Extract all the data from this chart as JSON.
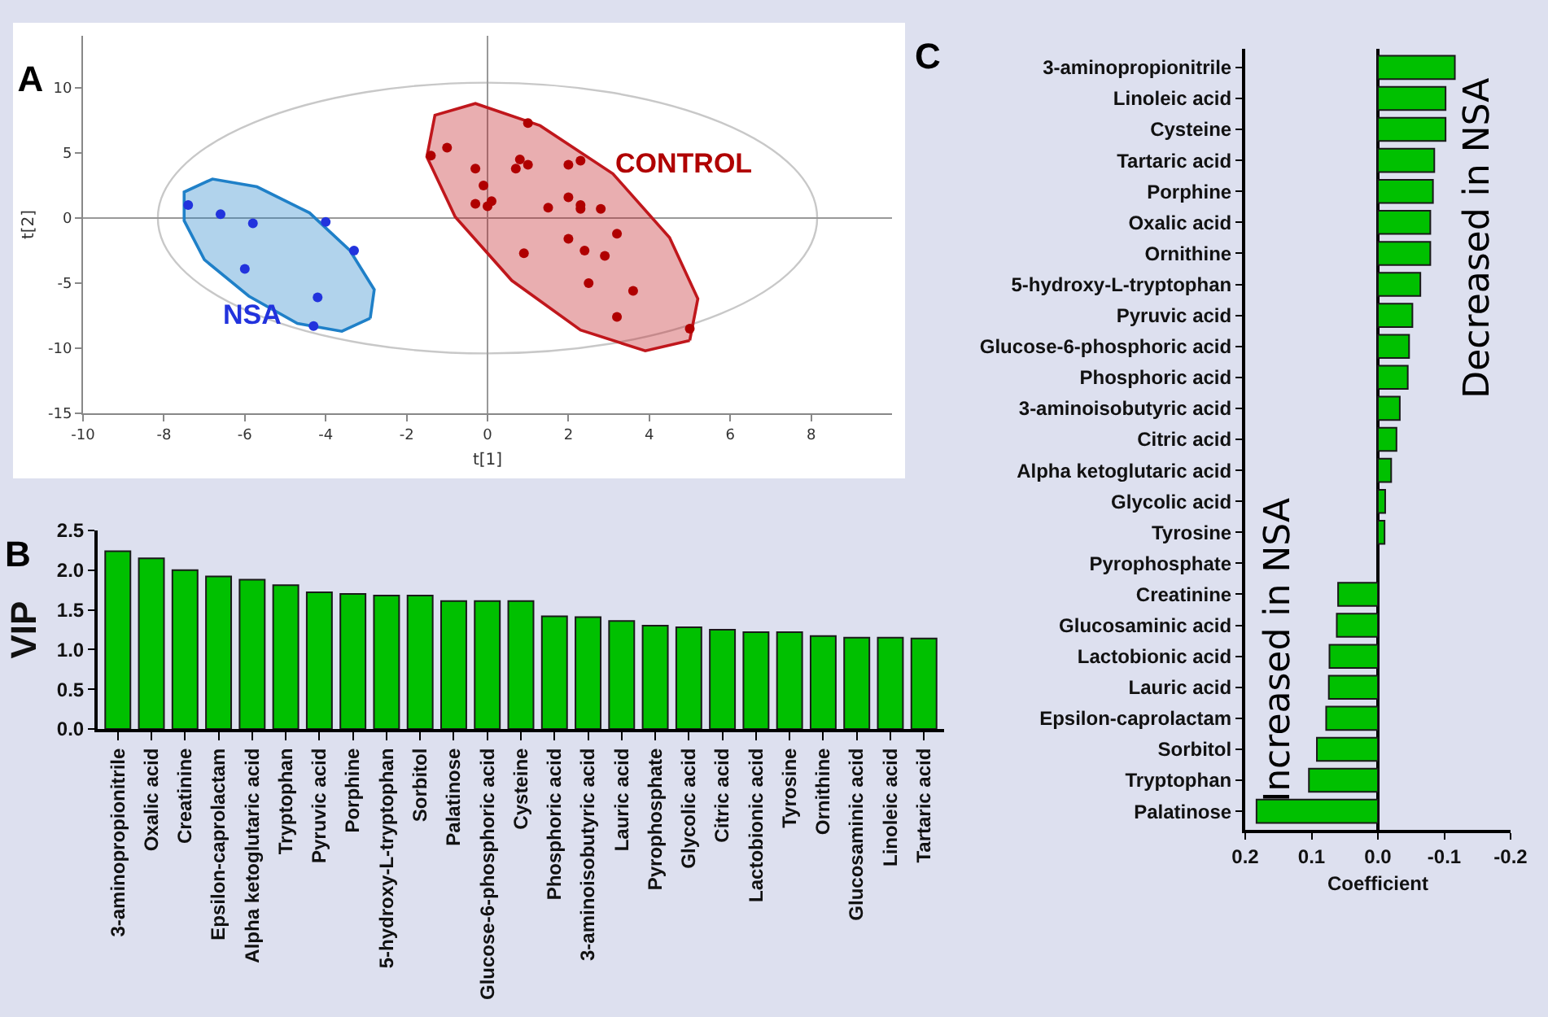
{
  "chart_data": [
    {
      "type": "scatter",
      "title": "A",
      "xlabel": "t[1]",
      "ylabel": "t[2]",
      "xlim": [
        -10,
        10
      ],
      "ylim": [
        -15,
        14
      ],
      "xticks": [
        -10,
        -8,
        -6,
        -4,
        -2,
        0,
        2,
        4,
        6,
        8
      ],
      "yticks": [
        -15,
        -10,
        -5,
        0,
        5,
        10
      ],
      "grid": false,
      "marker": "circle",
      "ref_lines": [
        {
          "axis": "x",
          "value": 0,
          "color": "#999999"
        },
        {
          "axis": "y",
          "value": 0,
          "color": "#999999"
        }
      ],
      "annotations": [
        "NSA",
        "CONTROL"
      ],
      "series": [
        {
          "type": "area",
          "marker": "none",
          "color": "#1f80c8",
          "x": [
            -2.9,
            -2.8,
            -3.4,
            -4.4,
            -5.7,
            -6.8,
            -7.5,
            -7.5,
            -7,
            -5.9,
            -4.7,
            -3.6,
            -2.9
          ],
          "values": [
            -7.7,
            -5.5,
            -2.5,
            0.4,
            2.4,
            3,
            2,
            -0.2,
            -3.2,
            -6,
            -8.1,
            -8.7,
            -7.7
          ]
        },
        {
          "type": "area",
          "marker": "none",
          "color": "#c0171c",
          "x": [
            5,
            5.2,
            4.5,
            3.1,
            1.3,
            -0.3,
            -1.3,
            -1.5,
            -0.8,
            0.6,
            2.3,
            3.9,
            5
          ],
          "values": [
            -9.4,
            -6.2,
            -1.5,
            3.4,
            7.1,
            8.8,
            7.9,
            4.7,
            0.1,
            -4.8,
            -8.6,
            -10.2,
            -9.4
          ]
        },
        {
          "type": "scatter",
          "color": "#2233dd",
          "x": [
            -7.4,
            -6.6,
            -5.8,
            -4,
            -3.3,
            -6,
            -4.2,
            -4.3
          ],
          "values": [
            1,
            0.3,
            -0.4,
            -0.3,
            -2.5,
            -3.9,
            -6.1,
            -8.3
          ]
        },
        {
          "type": "scatter",
          "color": "#b00000",
          "x": [
            -1.4,
            -1,
            1,
            -0.3,
            0.8,
            0.7,
            1,
            2,
            2.3,
            -0.1,
            -0.3,
            0.1,
            0,
            1.5,
            2,
            2.3,
            2.3,
            2.8,
            3.2,
            2,
            2.4,
            2.9,
            0.9,
            2.5,
            3.6,
            3.2,
            5
          ],
          "values": [
            4.8,
            5.4,
            7.3,
            3.8,
            4.5,
            3.8,
            4.1,
            4.1,
            4.4,
            2.5,
            1.1,
            1.3,
            0.9,
            0.8,
            1.6,
            1,
            0.7,
            0.7,
            -1.2,
            -1.6,
            -2.5,
            -2.9,
            -2.7,
            -5,
            -5.6,
            -7.6,
            -8.5
          ]
        }
      ]
    },
    {
      "type": "bar",
      "title": "B",
      "ylabel": "VIP",
      "ylim": [
        0,
        2.5
      ],
      "yticks": [
        {
          "value": 0,
          "label": "0.0"
        },
        {
          "value": 0.5,
          "label": "0.5"
        },
        {
          "value": 1,
          "label": "1.0"
        },
        {
          "value": 1.5,
          "label": "1.5"
        },
        {
          "value": 2,
          "label": "2.0"
        },
        {
          "value": 2.5,
          "label": "2.5"
        }
      ],
      "grid": false,
      "categories": [
        "3-aminopropionitrile",
        "Oxalic acid",
        "Creatinine",
        "Epsilon-caprolactam",
        "Alpha ketoglutaric acid",
        "Tryptophan",
        "Pyruvic acid",
        "Porphine",
        "5-hydroxy-L-tryptophan",
        "Sorbitol",
        "Palatinose",
        "Glucose-6-phosphoric acid",
        "Cysteine",
        "Phosphoric acid",
        "3-aminoisobutyric acid",
        "Lauric acid",
        "Pyrophosphate",
        "Glycolic acid",
        "Citric acid",
        "Lactobionic acid",
        "Tyrosine",
        "Ornithine",
        "Glucosaminic acid",
        "Linoleic acid",
        "Tartaric acid"
      ],
      "series": [
        {
          "color": "#00c000",
          "values": [
            2.24,
            2.15,
            2.0,
            1.92,
            1.88,
            1.81,
            1.72,
            1.7,
            1.68,
            1.68,
            1.61,
            1.61,
            1.61,
            1.42,
            1.41,
            1.36,
            1.3,
            1.28,
            1.25,
            1.22,
            1.22,
            1.17,
            1.15,
            1.15,
            1.14
          ]
        }
      ]
    },
    {
      "type": "bar",
      "orientation": "horizontal",
      "title": "C",
      "xlabel": "Coefficient",
      "xlim": [
        0.2,
        -0.2
      ],
      "xticks": [
        0.2,
        0.1,
        {
          "value": 0,
          "label": "0.0"
        },
        -0.1,
        -0.2
      ],
      "grid": false,
      "ref_lines": [
        {
          "axis": "x",
          "value": 0,
          "color": "#000000"
        }
      ],
      "annotations": [
        "Decreased in NSA",
        "Increased in NSA"
      ],
      "categories": [
        "3-aminopropionitrile",
        "Linoleic acid",
        "Cysteine",
        "Tartaric acid",
        "Porphine",
        "Oxalic acid",
        "Ornithine",
        "5-hydroxy-L-tryptophan",
        "Pyruvic acid",
        "Glucose-6-phosphoric acid",
        "Phosphoric acid",
        "3-aminoisobutyric acid",
        "Citric acid",
        "Alpha ketoglutaric acid",
        "Glycolic acid",
        "Tyrosine",
        "Pyrophosphate",
        "Creatinine",
        "Glucosaminic acid",
        "Lactobionic acid",
        "Lauric acid",
        "Epsilon-caprolactam",
        "Sorbitol",
        "Tryptophan",
        "Palatinose"
      ],
      "series": [
        {
          "color": "#00c000",
          "values": [
            -0.116,
            -0.102,
            -0.102,
            -0.085,
            -0.083,
            -0.079,
            -0.079,
            -0.064,
            -0.052,
            -0.047,
            -0.045,
            -0.033,
            -0.028,
            -0.02,
            -0.011,
            -0.01,
            0,
            0.06,
            0.062,
            0.073,
            0.074,
            0.078,
            0.092,
            0.104,
            0.183
          ]
        }
      ]
    }
  ]
}
